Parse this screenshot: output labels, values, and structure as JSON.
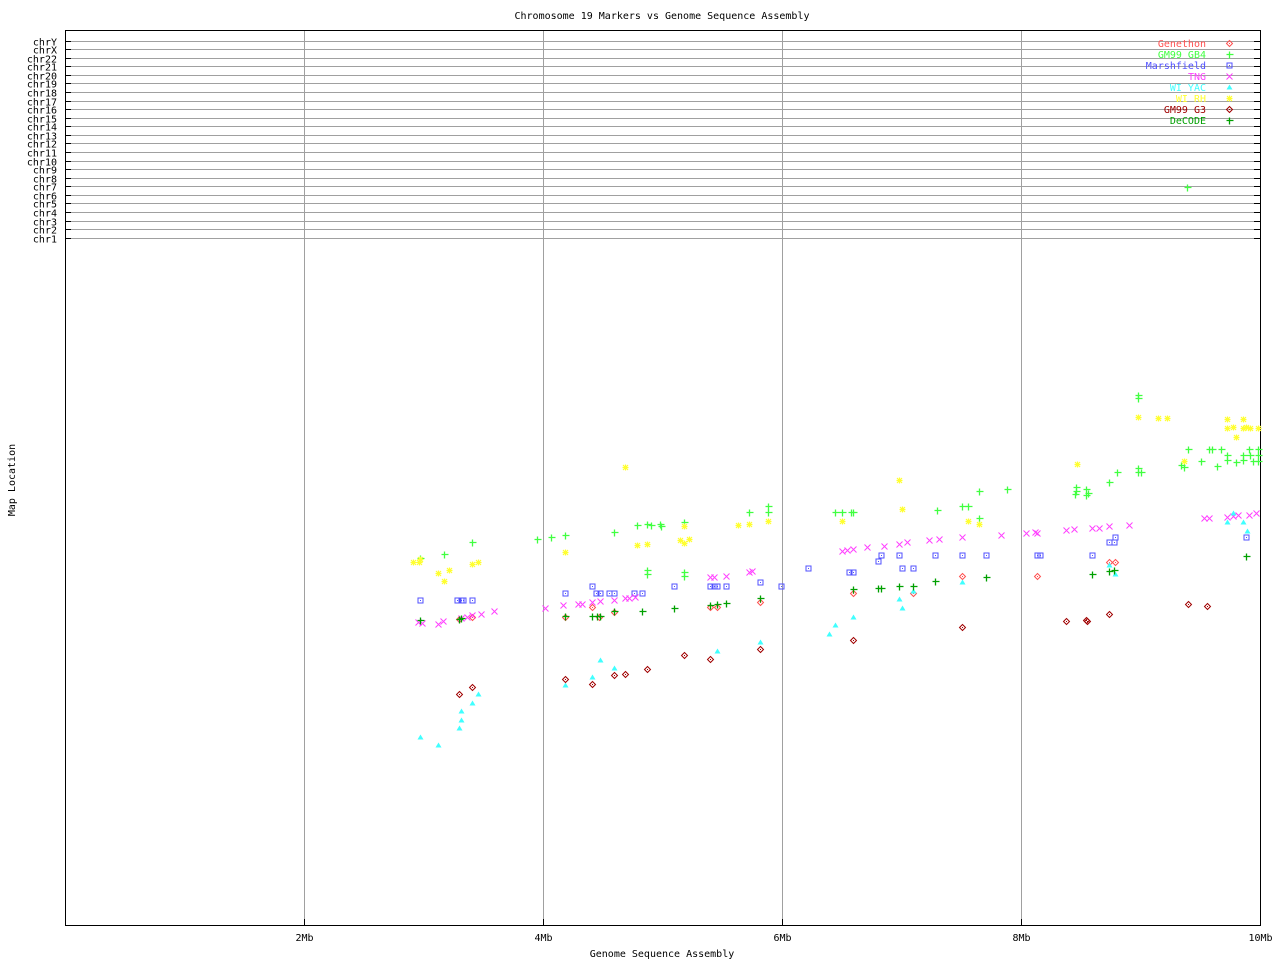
{
  "chart_data": {
    "type": "scatter",
    "title": "Chromosome 19 Markers vs Genome Sequence Assembly",
    "xlabel": "Genome Sequence Assembly",
    "ylabel": "Map Location",
    "xlim": [
      0,
      10
    ],
    "ylim": [
      0,
      100
    ],
    "grid": true,
    "legend_position": "top-right",
    "xticks": [
      {
        "label": "2Mb",
        "value": 2
      },
      {
        "label": "4Mb",
        "value": 4
      },
      {
        "label": "6Mb",
        "value": 6
      },
      {
        "label": "8Mb",
        "value": 8
      },
      {
        "label": "10Mb",
        "value": 10
      }
    ],
    "yticks": [
      {
        "label": "chr1",
        "value": 76.8
      },
      {
        "label": "chr2",
        "value": 77.76
      },
      {
        "label": "chr3",
        "value": 78.71
      },
      {
        "label": "chr4",
        "value": 79.67
      },
      {
        "label": "chr5",
        "value": 80.63
      },
      {
        "label": "chr6",
        "value": 81.59
      },
      {
        "label": "chr7",
        "value": 82.54
      },
      {
        "label": "chr8",
        "value": 83.5
      },
      {
        "label": "chr9",
        "value": 84.46
      },
      {
        "label": "chr10",
        "value": 85.41
      },
      {
        "label": "chr11",
        "value": 86.37
      },
      {
        "label": "chr12",
        "value": 87.33
      },
      {
        "label": "chr13",
        "value": 88.28
      },
      {
        "label": "chr14",
        "value": 89.24
      },
      {
        "label": "chr15",
        "value": 90.2
      },
      {
        "label": "chr16",
        "value": 91.16
      },
      {
        "label": "chr17",
        "value": 92.11
      },
      {
        "label": "chr18",
        "value": 93.07
      },
      {
        "label": "chr19",
        "value": 94.03
      },
      {
        "label": "chr20",
        "value": 94.98
      },
      {
        "label": "chr21",
        "value": 95.94
      },
      {
        "label": "chr22",
        "value": 96.9
      },
      {
        "label": "chrX",
        "value": 97.85
      },
      {
        "label": "chrY",
        "value": 98.81
      }
    ],
    "series": [
      {
        "name": "Genethon",
        "color": "#ff5050",
        "marker": "diamond",
        "points": [
          [
            3.3,
            34.2
          ],
          [
            3.41,
            34.4
          ],
          [
            4.18,
            34.4
          ],
          [
            4.41,
            35.5
          ],
          [
            4.47,
            34.4
          ],
          [
            4.59,
            35.0
          ],
          [
            5.4,
            35.5
          ],
          [
            5.46,
            35.5
          ],
          [
            5.82,
            36.1
          ],
          [
            6.59,
            37.1
          ],
          [
            7.1,
            37.1
          ],
          [
            7.51,
            39.0
          ],
          [
            8.13,
            39.0
          ],
          [
            8.74,
            40.6
          ],
          [
            8.79,
            40.6
          ]
        ]
      },
      {
        "name": "GM99 GB4",
        "color": "#40ff40",
        "marker": "plus",
        "points": [
          [
            2.97,
            41.0
          ],
          [
            3.17,
            41.5
          ],
          [
            3.41,
            42.8
          ],
          [
            3.95,
            43.1
          ],
          [
            4.07,
            43.4
          ],
          [
            4.18,
            43.6
          ],
          [
            4.59,
            43.9
          ],
          [
            4.79,
            44.7
          ],
          [
            4.87,
            44.8
          ],
          [
            4.9,
            44.7
          ],
          [
            4.98,
            44.8
          ],
          [
            4.99,
            44.6
          ],
          [
            5.18,
            45.0
          ],
          [
            4.87,
            39.7
          ],
          [
            4.87,
            39.2
          ],
          [
            5.18,
            39.4
          ],
          [
            5.18,
            39.0
          ],
          [
            5.72,
            46.1
          ],
          [
            5.88,
            46.8
          ],
          [
            5.88,
            46.1
          ],
          [
            6.44,
            46.1
          ],
          [
            6.5,
            46.1
          ],
          [
            6.58,
            46.1
          ],
          [
            6.59,
            46.1
          ],
          [
            7.3,
            46.4
          ],
          [
            7.51,
            46.8
          ],
          [
            7.56,
            46.8
          ],
          [
            7.65,
            48.5
          ],
          [
            7.65,
            45.5
          ],
          [
            7.88,
            48.7
          ],
          [
            8.46,
            48.9
          ],
          [
            8.46,
            48.5
          ],
          [
            8.45,
            48.2
          ],
          [
            8.54,
            48.7
          ],
          [
            8.56,
            48.3
          ],
          [
            8.54,
            48.0
          ],
          [
            8.74,
            49.5
          ],
          [
            8.8,
            50.6
          ],
          [
            8.98,
            51.1
          ],
          [
            8.98,
            50.6
          ],
          [
            9.0,
            50.6
          ],
          [
            8.98,
            59.2
          ],
          [
            8.98,
            58.9
          ],
          [
            9.34,
            51.4
          ],
          [
            9.36,
            51.2
          ],
          [
            9.4,
            53.2
          ],
          [
            9.51,
            51.8
          ],
          [
            9.57,
            53.2
          ],
          [
            9.6,
            53.2
          ],
          [
            9.64,
            51.3
          ],
          [
            9.67,
            53.2
          ],
          [
            9.72,
            52.5
          ],
          [
            9.72,
            52.0
          ],
          [
            9.8,
            51.7
          ],
          [
            9.86,
            52.5
          ],
          [
            9.86,
            52.0
          ],
          [
            9.91,
            53.2
          ],
          [
            9.92,
            52.5
          ],
          [
            9.94,
            51.8
          ],
          [
            9.98,
            53.2
          ],
          [
            9.98,
            52.5
          ],
          [
            9.98,
            51.8
          ],
          [
            9.39,
            82.5
          ]
        ]
      },
      {
        "name": "Marshfield",
        "color": "#5050ff",
        "marker": "square",
        "points": [
          [
            2.97,
            36.3
          ],
          [
            3.28,
            36.3
          ],
          [
            3.31,
            36.3
          ],
          [
            3.33,
            36.3
          ],
          [
            3.41,
            36.3
          ],
          [
            4.18,
            37.1
          ],
          [
            4.41,
            37.9
          ],
          [
            4.44,
            37.1
          ],
          [
            4.48,
            37.1
          ],
          [
            4.55,
            37.1
          ],
          [
            4.59,
            37.1
          ],
          [
            4.76,
            37.1
          ],
          [
            4.83,
            37.1
          ],
          [
            5.1,
            37.9
          ],
          [
            5.4,
            37.9
          ],
          [
            5.43,
            37.9
          ],
          [
            5.46,
            37.9
          ],
          [
            5.53,
            37.9
          ],
          [
            5.82,
            38.3
          ],
          [
            5.99,
            37.9
          ],
          [
            6.22,
            39.9
          ],
          [
            6.56,
            39.4
          ],
          [
            6.59,
            39.4
          ],
          [
            6.8,
            40.7
          ],
          [
            6.83,
            41.3
          ],
          [
            6.98,
            41.3
          ],
          [
            7.0,
            39.9
          ],
          [
            7.1,
            39.9
          ],
          [
            7.28,
            41.3
          ],
          [
            7.51,
            41.3
          ],
          [
            7.71,
            41.3
          ],
          [
            8.13,
            41.3
          ],
          [
            8.16,
            41.3
          ],
          [
            8.59,
            41.3
          ],
          [
            8.74,
            42.8
          ],
          [
            8.78,
            42.8
          ],
          [
            8.79,
            43.4
          ],
          [
            9.88,
            43.4
          ]
        ]
      },
      {
        "name": "TNG",
        "color": "#ff40ff",
        "marker": "cross",
        "points": [
          [
            2.95,
            33.9
          ],
          [
            2.99,
            33.7
          ],
          [
            3.12,
            33.6
          ],
          [
            3.16,
            34.0
          ],
          [
            3.31,
            34.3
          ],
          [
            3.36,
            34.4
          ],
          [
            3.41,
            34.6
          ],
          [
            3.48,
            34.7
          ],
          [
            3.59,
            35.1
          ],
          [
            4.02,
            35.4
          ],
          [
            4.17,
            35.8
          ],
          [
            4.29,
            35.9
          ],
          [
            4.33,
            35.9
          ],
          [
            4.41,
            36.1
          ],
          [
            4.48,
            36.2
          ],
          [
            4.59,
            36.3
          ],
          [
            4.69,
            36.5
          ],
          [
            4.72,
            36.5
          ],
          [
            4.77,
            36.6
          ],
          [
            5.4,
            38.9
          ],
          [
            5.43,
            38.9
          ],
          [
            5.53,
            39.0
          ],
          [
            5.72,
            39.4
          ],
          [
            5.75,
            39.6
          ],
          [
            6.5,
            41.8
          ],
          [
            6.54,
            41.9
          ],
          [
            6.59,
            42.0
          ],
          [
            6.71,
            42.2
          ],
          [
            6.85,
            42.3
          ],
          [
            6.98,
            42.6
          ],
          [
            7.05,
            42.8
          ],
          [
            7.23,
            43.0
          ],
          [
            7.31,
            43.1
          ],
          [
            7.51,
            43.4
          ],
          [
            7.83,
            43.6
          ],
          [
            8.04,
            43.8
          ],
          [
            8.12,
            43.9
          ],
          [
            8.13,
            43.8
          ],
          [
            8.38,
            44.1
          ],
          [
            8.44,
            44.2
          ],
          [
            8.59,
            44.4
          ],
          [
            8.65,
            44.4
          ],
          [
            8.74,
            44.6
          ],
          [
            8.9,
            44.7
          ],
          [
            9.53,
            45.5
          ],
          [
            9.57,
            45.5
          ],
          [
            9.72,
            45.6
          ],
          [
            9.77,
            45.7
          ],
          [
            9.82,
            45.8
          ],
          [
            9.91,
            45.8
          ],
          [
            9.97,
            46.0
          ]
        ]
      },
      {
        "name": "WI YAC",
        "color": "#40ffff",
        "marker": "triangle",
        "points": [
          [
            2.97,
            21.0
          ],
          [
            3.12,
            20.1
          ],
          [
            3.3,
            22.0
          ],
          [
            3.31,
            22.9
          ],
          [
            3.31,
            23.9
          ],
          [
            3.41,
            24.8
          ],
          [
            3.46,
            25.8
          ],
          [
            4.18,
            26.8
          ],
          [
            4.41,
            27.7
          ],
          [
            4.48,
            29.6
          ],
          [
            4.59,
            28.7
          ],
          [
            5.46,
            30.6
          ],
          [
            5.82,
            31.6
          ],
          [
            6.39,
            32.5
          ],
          [
            6.44,
            33.5
          ],
          [
            6.59,
            34.4
          ],
          [
            6.98,
            36.4
          ],
          [
            7.0,
            35.4
          ],
          [
            7.1,
            37.3
          ],
          [
            7.51,
            38.3
          ],
          [
            8.74,
            40.2
          ],
          [
            8.79,
            39.2
          ],
          [
            9.72,
            45.0
          ],
          [
            9.77,
            46.0
          ],
          [
            9.86,
            45.0
          ],
          [
            9.89,
            44.0
          ]
        ]
      },
      {
        "name": "WI RH",
        "color": "#ffff30",
        "marker": "star",
        "points": [
          [
            2.91,
            40.6
          ],
          [
            2.96,
            40.6
          ],
          [
            2.97,
            40.9
          ],
          [
            3.12,
            39.3
          ],
          [
            3.17,
            38.4
          ],
          [
            3.21,
            39.7
          ],
          [
            3.41,
            40.3
          ],
          [
            3.46,
            40.6
          ],
          [
            4.18,
            41.7
          ],
          [
            4.69,
            51.2
          ],
          [
            4.79,
            42.5
          ],
          [
            4.87,
            42.6
          ],
          [
            5.18,
            44.6
          ],
          [
            5.15,
            43.0
          ],
          [
            5.18,
            42.7
          ],
          [
            5.22,
            43.1
          ],
          [
            5.63,
            44.7
          ],
          [
            5.72,
            44.8
          ],
          [
            5.88,
            45.1
          ],
          [
            6.5,
            45.1
          ],
          [
            6.98,
            49.7
          ],
          [
            7.0,
            46.5
          ],
          [
            7.56,
            45.1
          ],
          [
            7.65,
            44.8
          ],
          [
            8.47,
            51.5
          ],
          [
            8.98,
            56.8
          ],
          [
            9.15,
            56.6
          ],
          [
            9.22,
            56.6
          ],
          [
            9.36,
            51.8
          ],
          [
            9.72,
            56.5
          ],
          [
            9.72,
            55.5
          ],
          [
            9.77,
            55.6
          ],
          [
            9.8,
            54.5
          ],
          [
            9.86,
            56.5
          ],
          [
            9.86,
            55.5
          ],
          [
            9.88,
            55.6
          ],
          [
            9.92,
            55.5
          ],
          [
            9.98,
            55.5
          ]
        ]
      },
      {
        "name": "GM99 G3",
        "color": "#a00000",
        "marker": "diamond",
        "points": [
          [
            3.3,
            25.8
          ],
          [
            3.41,
            26.6
          ],
          [
            4.18,
            27.5
          ],
          [
            4.41,
            26.9
          ],
          [
            4.59,
            27.9
          ],
          [
            4.69,
            28.0
          ],
          [
            4.87,
            28.6
          ],
          [
            5.18,
            30.2
          ],
          [
            5.4,
            29.7
          ],
          [
            5.82,
            30.8
          ],
          [
            6.59,
            31.8
          ],
          [
            7.51,
            33.3
          ],
          [
            8.38,
            34.0
          ],
          [
            8.54,
            34.1
          ],
          [
            8.55,
            34.0
          ],
          [
            8.74,
            34.7
          ],
          [
            9.4,
            35.9
          ],
          [
            9.56,
            35.6
          ]
        ]
      },
      {
        "name": "DeCODE",
        "color": "#00a000",
        "marker": "plus",
        "points": [
          [
            2.97,
            34.1
          ],
          [
            3.3,
            34.2
          ],
          [
            3.31,
            34.3
          ],
          [
            4.18,
            34.5
          ],
          [
            4.41,
            34.5
          ],
          [
            4.45,
            34.5
          ],
          [
            4.48,
            34.5
          ],
          [
            4.59,
            35.1
          ],
          [
            4.83,
            35.1
          ],
          [
            5.1,
            35.4
          ],
          [
            5.4,
            35.8
          ],
          [
            5.46,
            35.9
          ],
          [
            5.53,
            36.0
          ],
          [
            5.82,
            36.5
          ],
          [
            6.59,
            37.5
          ],
          [
            6.8,
            37.7
          ],
          [
            6.83,
            37.7
          ],
          [
            6.98,
            37.9
          ],
          [
            7.1,
            37.9
          ],
          [
            7.28,
            38.4
          ],
          [
            7.71,
            38.9
          ],
          [
            8.59,
            39.2
          ],
          [
            8.74,
            39.6
          ],
          [
            8.78,
            39.7
          ],
          [
            9.88,
            41.2
          ]
        ]
      }
    ]
  }
}
